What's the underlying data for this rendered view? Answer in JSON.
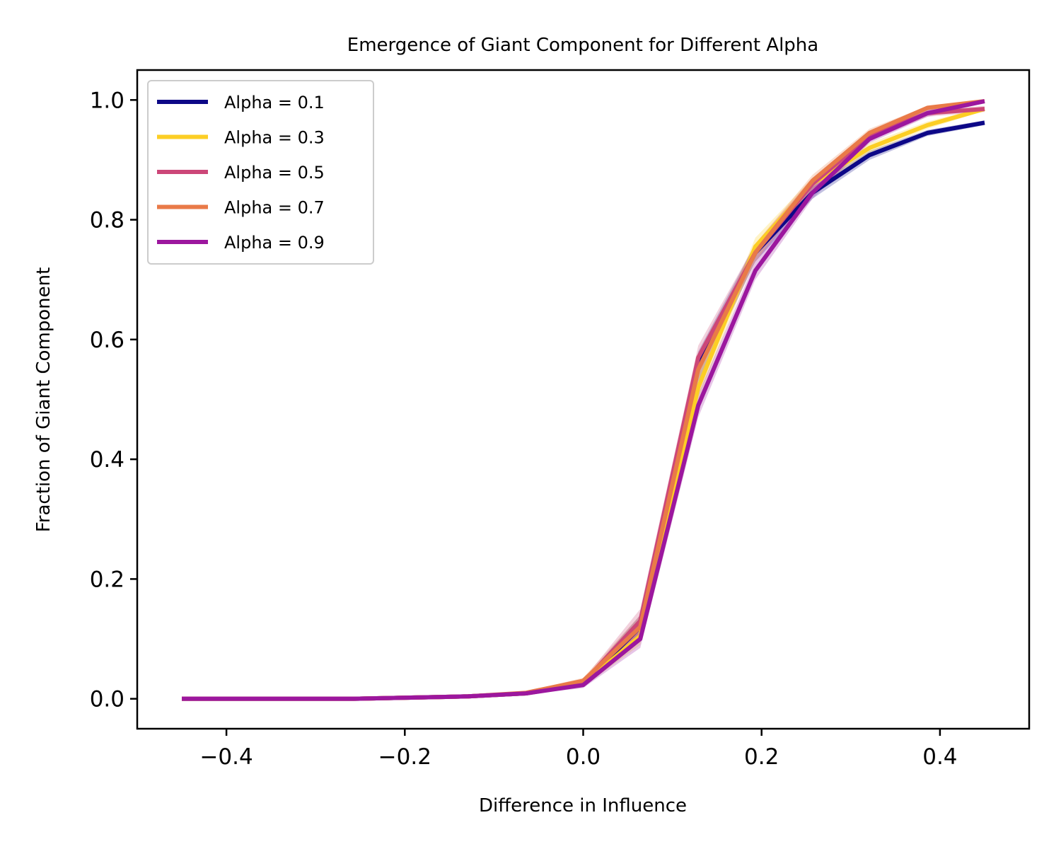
{
  "chart_data": {
    "type": "line",
    "title": "Emergence of Giant Component for Different Alpha",
    "xlabel": "Difference in Influence",
    "ylabel": "Fraction of Giant Component",
    "xlim": [
      -0.5,
      0.5
    ],
    "ylim": [
      -0.05,
      1.05
    ],
    "xticks": [
      -0.4,
      -0.2,
      0.0,
      0.2,
      0.4
    ],
    "xtick_labels": [
      "−0.4",
      "−0.2",
      "0.0",
      "0.2",
      "0.4"
    ],
    "yticks": [
      0.0,
      0.2,
      0.4,
      0.6,
      0.8,
      1.0
    ],
    "ytick_labels": [
      "0.0",
      "0.2",
      "0.4",
      "0.6",
      "0.8",
      "1.0"
    ],
    "grid": false,
    "legend_position": "upper-left",
    "x": [
      -0.45,
      -0.386,
      -0.321,
      -0.257,
      -0.193,
      -0.129,
      -0.064,
      0.0,
      0.064,
      0.129,
      0.193,
      0.257,
      0.321,
      0.386,
      0.45
    ],
    "series": [
      {
        "name": "Alpha = 0.1",
        "color": "#0d0887",
        "values": [
          0.0,
          0.0,
          0.0,
          0.0,
          0.002,
          0.004,
          0.009,
          0.025,
          0.12,
          0.56,
          0.745,
          0.845,
          0.908,
          0.945,
          0.962
        ],
        "lower": [
          0.0,
          0.0,
          0.0,
          0.0,
          0.001,
          0.003,
          0.007,
          0.02,
          0.1,
          0.53,
          0.73,
          0.835,
          0.9,
          0.94,
          0.958
        ],
        "upper": [
          0.0,
          0.0,
          0.0,
          0.001,
          0.003,
          0.005,
          0.011,
          0.03,
          0.14,
          0.58,
          0.76,
          0.855,
          0.915,
          0.95,
          0.966
        ]
      },
      {
        "name": "Alpha = 0.3",
        "color": "#fcce25",
        "values": [
          0.0,
          0.0,
          0.0,
          0.0,
          0.002,
          0.004,
          0.009,
          0.025,
          0.105,
          0.52,
          0.755,
          0.86,
          0.92,
          0.958,
          0.985
        ],
        "lower": [
          0.0,
          0.0,
          0.0,
          0.0,
          0.001,
          0.003,
          0.007,
          0.02,
          0.09,
          0.5,
          0.74,
          0.85,
          0.912,
          0.952,
          0.982
        ],
        "upper": [
          0.0,
          0.0,
          0.0,
          0.001,
          0.003,
          0.005,
          0.011,
          0.03,
          0.12,
          0.54,
          0.77,
          0.87,
          0.928,
          0.964,
          0.988
        ]
      },
      {
        "name": "Alpha = 0.5",
        "color": "#cc4778",
        "values": [
          0.0,
          0.0,
          0.0,
          0.0,
          0.002,
          0.004,
          0.009,
          0.027,
          0.13,
          0.57,
          0.745,
          0.86,
          0.94,
          0.978,
          0.985
        ],
        "lower": [
          0.0,
          0.0,
          0.0,
          0.0,
          0.001,
          0.003,
          0.007,
          0.022,
          0.11,
          0.55,
          0.73,
          0.85,
          0.932,
          0.972,
          0.98
        ],
        "upper": [
          0.0,
          0.0,
          0.0,
          0.001,
          0.003,
          0.005,
          0.011,
          0.032,
          0.15,
          0.59,
          0.76,
          0.87,
          0.948,
          0.984,
          0.99
        ]
      },
      {
        "name": "Alpha = 0.7",
        "color": "#e97a48",
        "values": [
          0.0,
          0.0,
          0.0,
          0.0,
          0.002,
          0.004,
          0.01,
          0.03,
          0.12,
          0.55,
          0.745,
          0.865,
          0.945,
          0.987,
          0.998
        ],
        "lower": [
          0.0,
          0.0,
          0.0,
          0.0,
          0.001,
          0.003,
          0.008,
          0.025,
          0.1,
          0.53,
          0.73,
          0.855,
          0.938,
          0.982,
          0.995
        ],
        "upper": [
          0.0,
          0.0,
          0.0,
          0.001,
          0.003,
          0.005,
          0.012,
          0.035,
          0.14,
          0.57,
          0.76,
          0.875,
          0.952,
          0.99,
          1.0
        ]
      },
      {
        "name": "Alpha = 0.9",
        "color": "#9c179e",
        "values": [
          0.0,
          0.0,
          0.0,
          0.0,
          0.002,
          0.004,
          0.009,
          0.023,
          0.1,
          0.49,
          0.715,
          0.845,
          0.935,
          0.978,
          0.998
        ],
        "lower": [
          0.0,
          0.0,
          0.0,
          0.0,
          0.001,
          0.003,
          0.007,
          0.018,
          0.085,
          0.47,
          0.7,
          0.835,
          0.928,
          0.972,
          0.995
        ],
        "upper": [
          0.0,
          0.0,
          0.0,
          0.001,
          0.003,
          0.005,
          0.011,
          0.028,
          0.115,
          0.51,
          0.73,
          0.855,
          0.942,
          0.984,
          1.0
        ]
      }
    ]
  }
}
